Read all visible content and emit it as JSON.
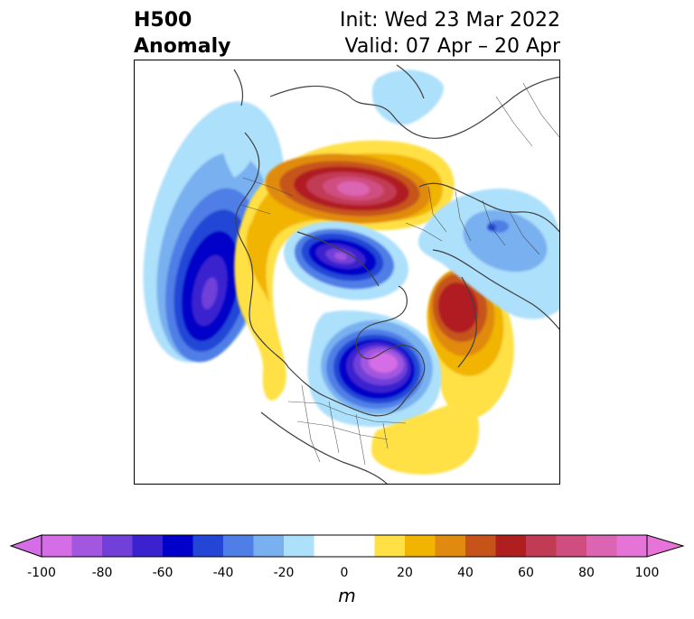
{
  "title": {
    "left_line1": "H500",
    "left_line2": "Anomaly",
    "right_line1": "Init: Wed 23 Mar 2022",
    "right_line2": "Valid: 07 Apr – 20 Apr"
  },
  "colorbar": {
    "unit": "m",
    "ticks": [
      "-100",
      "-80",
      "-60",
      "-40",
      "-20",
      "0",
      "20",
      "40",
      "60",
      "80",
      "100"
    ],
    "colors": [
      "#d46de6",
      "#a356df",
      "#7040d8",
      "#3a22cf",
      "#0000c8",
      "#2346d6",
      "#4f7ee6",
      "#78b0f0",
      "#ade0fb",
      "#ffffff",
      "#ffffff",
      "#ffe045",
      "#f1b400",
      "#e08b10",
      "#c6541a",
      "#b01f20",
      "#c23b55",
      "#d04d80",
      "#db65b3",
      "#e674d8"
    ]
  },
  "colors": {
    "land_outline": "#404040"
  }
}
